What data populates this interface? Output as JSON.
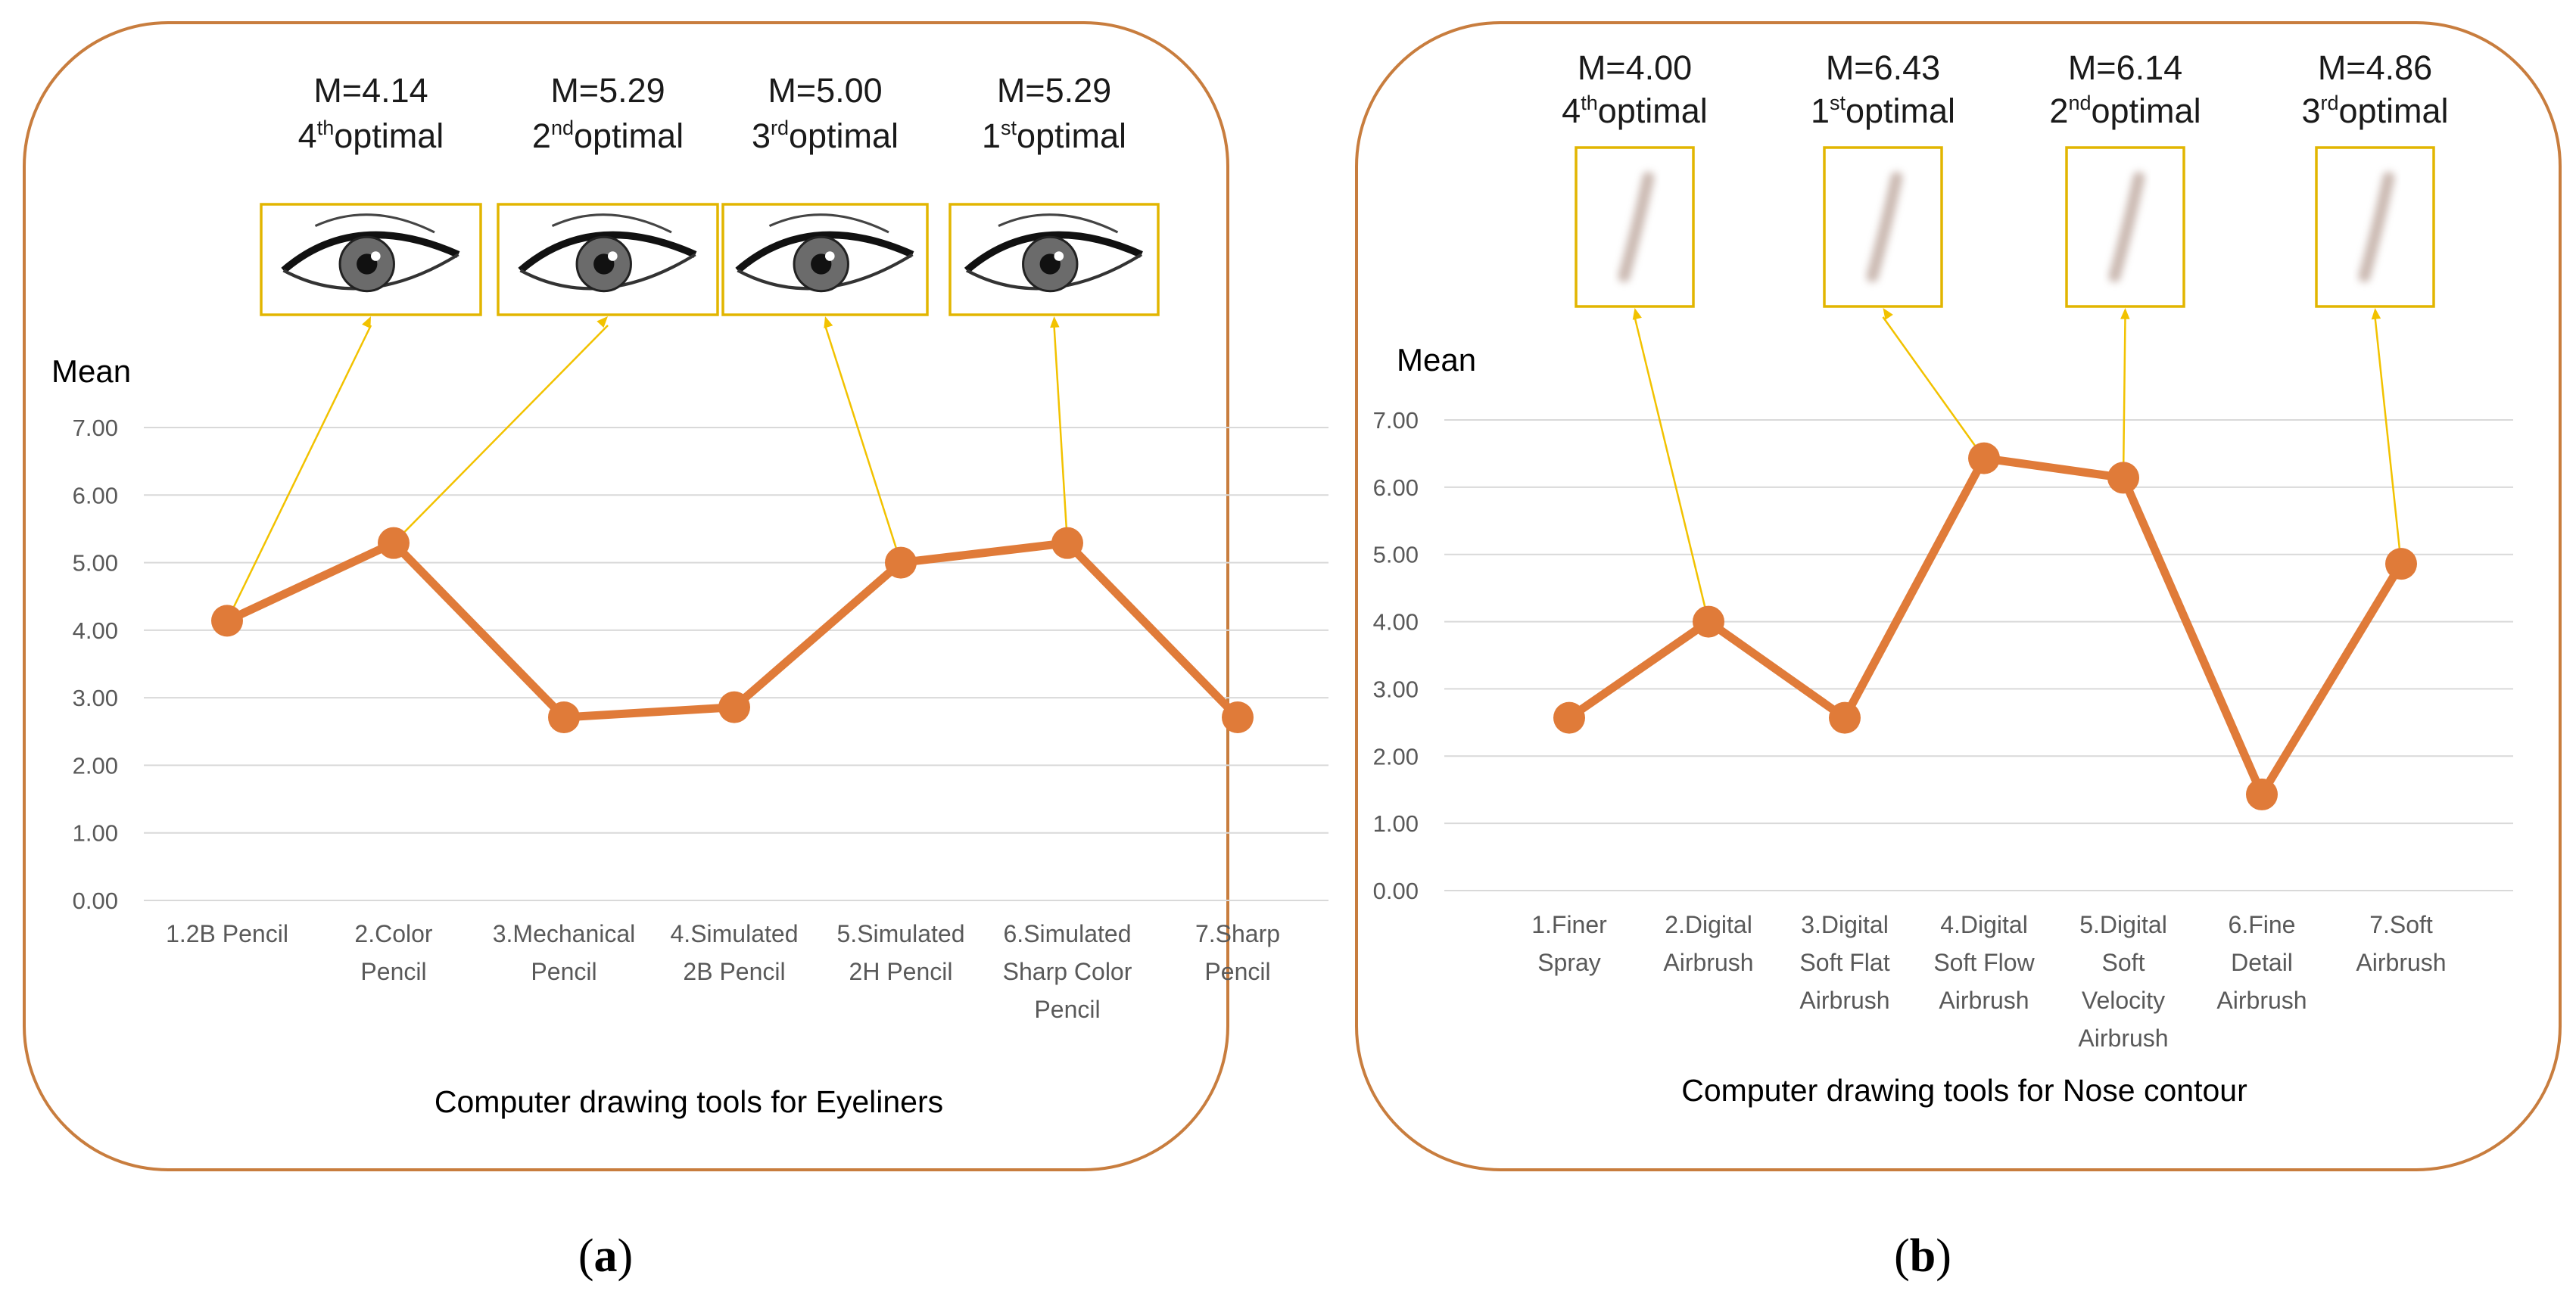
{
  "chart_data": [
    {
      "type": "line",
      "panel_label": "a",
      "ylabel": "Mean",
      "xlabel": "Computer drawing tools for Eyeliners",
      "ylim": [
        0,
        7
      ],
      "yticks": [
        "0.00",
        "1.00",
        "2.00",
        "3.00",
        "4.00",
        "5.00",
        "6.00",
        "7.00"
      ],
      "grid": true,
      "thumbnail_kind": "eye",
      "categories": [
        [
          "1.2B Pencil"
        ],
        [
          "2.Color",
          "Pencil"
        ],
        [
          "3.Mechanical",
          "Pencil"
        ],
        [
          "4.Simulated",
          "2B Pencil"
        ],
        [
          "5.Simulated",
          "2H Pencil"
        ],
        [
          "6.Simulated",
          "Sharp Color",
          "Pencil"
        ],
        [
          "7.Sharp",
          "Pencil"
        ]
      ],
      "series": [
        {
          "name": "Mean",
          "color": "#e07b39",
          "values": [
            4.14,
            5.29,
            2.71,
            2.86,
            5.0,
            5.29,
            2.71
          ]
        }
      ],
      "annotations": [
        {
          "index": 0,
          "mean": "M=4.14",
          "rank": "4",
          "suffix": "th",
          "word": "optimal"
        },
        {
          "index": 1,
          "mean": "M=5.29",
          "rank": "2",
          "suffix": "nd",
          "word": "optimal"
        },
        {
          "index": 4,
          "mean": "M=5.00",
          "rank": "3",
          "suffix": "rd",
          "word": "optimal"
        },
        {
          "index": 5,
          "mean": "M=5.29",
          "rank": "1",
          "suffix": "st",
          "word": "optimal"
        }
      ]
    },
    {
      "type": "line",
      "panel_label": "b",
      "ylabel": "Mean",
      "xlabel": "Computer drawing tools for Nose contour",
      "ylim": [
        0,
        7
      ],
      "yticks": [
        "0.00",
        "1.00",
        "2.00",
        "3.00",
        "4.00",
        "5.00",
        "6.00",
        "7.00"
      ],
      "grid": true,
      "thumbnail_kind": "brush-stroke",
      "categories": [
        [
          "1.Finer",
          "Spray"
        ],
        [
          "2.Digital",
          "Airbrush"
        ],
        [
          "3.Digital",
          "Soft Flat",
          "Airbrush"
        ],
        [
          "4.Digital",
          "Soft Flow",
          "Airbrush"
        ],
        [
          "5.Digital",
          "Soft",
          "Velocity",
          "Airbrush"
        ],
        [
          "6.Fine",
          "Detail",
          "Airbrush"
        ],
        [
          "7.Soft",
          "Airbrush"
        ]
      ],
      "series": [
        {
          "name": "Mean",
          "color": "#e07b39",
          "values": [
            2.57,
            4.0,
            2.57,
            6.43,
            6.14,
            1.43,
            4.86
          ]
        }
      ],
      "annotations": [
        {
          "index": 1,
          "mean": "M=4.00",
          "rank": "4",
          "suffix": "th",
          "word": "optimal"
        },
        {
          "index": 3,
          "mean": "M=6.43",
          "rank": "1",
          "suffix": "st",
          "word": "optimal"
        },
        {
          "index": 4,
          "mean": "M=6.14",
          "rank": "2",
          "suffix": "nd",
          "word": "optimal"
        },
        {
          "index": 6,
          "mean": "M=4.86",
          "rank": "3",
          "suffix": "rd",
          "word": "optimal"
        }
      ]
    }
  ]
}
